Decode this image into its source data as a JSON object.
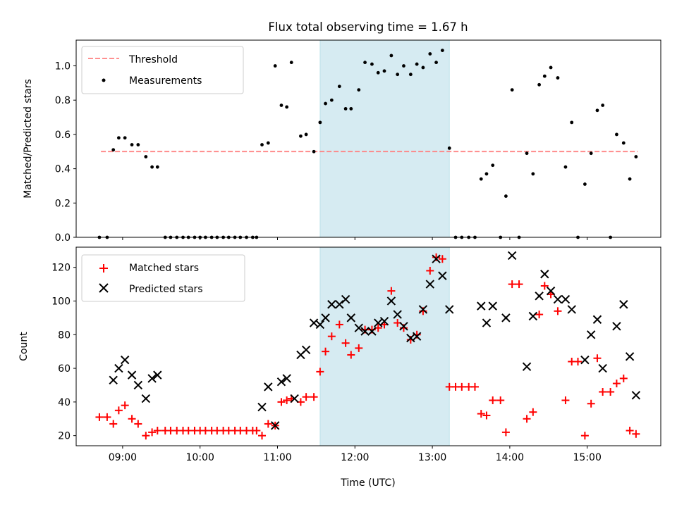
{
  "figure": {
    "title": "Flux total observing time = 1.67 h"
  },
  "chart_data": [
    {
      "type": "scatter",
      "panel": "top",
      "title": "Flux total observing time = 1.67 h",
      "xlabel": "",
      "ylabel": "Matched/Predicted stars",
      "xlim": [
        8.4,
        15.95
      ],
      "ylim": [
        0,
        1.15
      ],
      "yticks": [
        0,
        0.2,
        0.4,
        0.6,
        0.8,
        1.0
      ],
      "ytick_labels": [
        "0.0",
        "0.2",
        "0.4",
        "0.6",
        "0.8",
        "1.0"
      ],
      "grid": false,
      "legend": {
        "placement": "upper-left",
        "entries": [
          "Threshold",
          "Measurements"
        ]
      },
      "highlight_span": {
        "x": [
          11.55,
          13.22
        ],
        "color": "#add8e6"
      },
      "threshold": {
        "name": "Threshold",
        "value": 0.5,
        "x": [
          8.72,
          15.65
        ],
        "color": "#ff8080",
        "style": "dashed"
      },
      "series": [
        {
          "name": "Measurements",
          "color": "#000000",
          "marker": "dot",
          "x": [
            8.7,
            8.8,
            8.88,
            8.95,
            9.03,
            9.12,
            9.2,
            9.3,
            9.38,
            9.45,
            9.55,
            9.62,
            9.7,
            9.78,
            9.85,
            9.93,
            10.0,
            10.07,
            10.15,
            10.22,
            10.3,
            10.37,
            10.45,
            10.52,
            10.6,
            10.68,
            10.73,
            10.8,
            10.88,
            10.97,
            11.05,
            11.12,
            11.18,
            11.3,
            11.37,
            11.47,
            11.55,
            11.62,
            11.7,
            11.8,
            11.88,
            11.95,
            12.05,
            12.13,
            12.22,
            12.3,
            12.38,
            12.47,
            12.55,
            12.63,
            12.72,
            12.8,
            12.88,
            12.97,
            13.05,
            13.13,
            13.22,
            13.3,
            13.38,
            13.47,
            13.55,
            13.63,
            13.7,
            13.78,
            13.88,
            13.95,
            14.03,
            14.12,
            14.22,
            14.3,
            14.38,
            14.45,
            14.53,
            14.62,
            14.72,
            14.8,
            14.88,
            14.97,
            15.05,
            15.13,
            15.2,
            15.3,
            15.38,
            15.47,
            15.55,
            15.63
          ],
          "y": [
            0,
            0,
            0.51,
            0.58,
            0.58,
            0.54,
            0.54,
            0.47,
            0.41,
            0.41,
            0,
            0,
            0,
            0,
            0,
            0,
            0,
            0,
            0,
            0,
            0,
            0,
            0,
            0,
            0,
            0,
            0,
            0.54,
            0.55,
            1.0,
            0.77,
            0.76,
            1.02,
            0.59,
            0.6,
            0.5,
            0.67,
            0.78,
            0.8,
            0.88,
            0.75,
            0.75,
            0.86,
            1.02,
            1.01,
            0.96,
            0.97,
            1.06,
            0.95,
            1.0,
            0.95,
            1.01,
            0.99,
            1.07,
            1.02,
            1.09,
            0.52,
            0,
            0,
            0,
            0,
            0.34,
            0.37,
            0.42,
            0,
            0.24,
            0.86,
            0,
            0.49,
            0.37,
            0.89,
            0.94,
            0.99,
            0.93,
            0.41,
            0.67,
            0,
            0.31,
            0.49,
            0.74,
            0.77,
            0,
            0.6,
            0.55,
            0.34,
            0.47
          ]
        }
      ]
    },
    {
      "type": "scatter",
      "panel": "bottom",
      "title": "",
      "xlabel": "Time (UTC)",
      "ylabel": "Count",
      "xlim": [
        8.4,
        15.95
      ],
      "ylim": [
        14,
        132
      ],
      "xticks": [
        9,
        10,
        11,
        12,
        13,
        14,
        15
      ],
      "xtick_labels": [
        "09:00",
        "10:00",
        "11:00",
        "12:00",
        "13:00",
        "14:00",
        "15:00"
      ],
      "yticks": [
        20,
        40,
        60,
        80,
        100,
        120
      ],
      "ytick_labels": [
        "20",
        "40",
        "60",
        "80",
        "100",
        "120"
      ],
      "grid": false,
      "legend": {
        "placement": "upper-left",
        "entries": [
          "Matched stars",
          "Predicted stars"
        ]
      },
      "highlight_span": {
        "x": [
          11.55,
          13.22
        ],
        "color": "#add8e6"
      },
      "series": [
        {
          "name": "Matched stars",
          "color": "#ff0000",
          "marker": "plus",
          "x": [
            8.7,
            8.8,
            8.88,
            8.95,
            9.03,
            9.12,
            9.2,
            9.3,
            9.38,
            9.45,
            9.55,
            9.62,
            9.7,
            9.78,
            9.85,
            9.93,
            10.0,
            10.07,
            10.15,
            10.22,
            10.3,
            10.37,
            10.45,
            10.52,
            10.6,
            10.68,
            10.73,
            10.8,
            10.88,
            10.97,
            11.05,
            11.12,
            11.18,
            11.3,
            11.37,
            11.47,
            11.55,
            11.62,
            11.7,
            11.8,
            11.88,
            11.95,
            12.05,
            12.13,
            12.22,
            12.3,
            12.38,
            12.47,
            12.55,
            12.63,
            12.72,
            12.8,
            12.88,
            12.97,
            13.05,
            13.13,
            13.22,
            13.3,
            13.38,
            13.47,
            13.55,
            13.63,
            13.7,
            13.78,
            13.88,
            13.95,
            14.03,
            14.12,
            14.22,
            14.3,
            14.38,
            14.45,
            14.53,
            14.62,
            14.72,
            14.8,
            14.88,
            14.97,
            15.05,
            15.13,
            15.2,
            15.3,
            15.38,
            15.47,
            15.55,
            15.63
          ],
          "y": [
            31,
            31,
            27,
            35,
            38,
            30,
            27,
            20,
            22,
            23,
            23,
            23,
            23,
            23,
            23,
            23,
            23,
            23,
            23,
            23,
            23,
            23,
            23,
            23,
            23,
            23,
            23,
            20,
            27,
            26,
            40,
            41,
            42,
            40,
            43,
            43,
            58,
            70,
            79,
            86,
            75,
            68,
            72,
            83,
            83,
            84,
            86,
            106,
            87,
            84,
            77,
            80,
            94,
            118,
            126,
            125,
            49,
            49,
            49,
            49,
            49,
            33,
            32,
            41,
            41,
            22,
            110,
            110,
            30,
            34,
            92,
            109,
            104,
            94,
            41,
            64,
            64,
            20,
            39,
            66,
            46,
            46,
            51,
            54,
            23,
            21
          ]
        },
        {
          "name": "Predicted stars",
          "color": "#000000",
          "marker": "x",
          "x": [
            8.88,
            8.95,
            9.03,
            9.12,
            9.2,
            9.3,
            9.38,
            9.45,
            10.8,
            10.88,
            10.97,
            11.05,
            11.12,
            11.22,
            11.3,
            11.37,
            11.47,
            11.55,
            11.62,
            11.7,
            11.8,
            11.88,
            11.95,
            12.05,
            12.13,
            12.22,
            12.3,
            12.38,
            12.47,
            12.55,
            12.63,
            12.72,
            12.8,
            12.88,
            12.97,
            13.05,
            13.13,
            13.22,
            13.63,
            13.7,
            13.78,
            13.95,
            14.03,
            14.22,
            14.3,
            14.38,
            14.45,
            14.53,
            14.62,
            14.72,
            14.8,
            14.97,
            15.05,
            15.13,
            15.2,
            15.38,
            15.47,
            15.55,
            15.63
          ],
          "y": [
            53,
            60,
            65,
            56,
            50,
            42,
            54,
            56,
            37,
            49,
            26,
            52,
            54,
            42,
            68,
            71,
            87,
            86,
            90,
            98,
            98,
            101,
            90,
            84,
            82,
            82,
            87,
            88,
            100,
            92,
            85,
            78,
            79,
            95,
            110,
            125,
            115,
            95,
            97,
            87,
            97,
            90,
            127,
            61,
            91,
            103,
            116,
            106,
            101,
            101,
            95,
            65,
            80,
            89,
            60,
            85,
            98,
            67,
            44
          ]
        }
      ]
    }
  ]
}
